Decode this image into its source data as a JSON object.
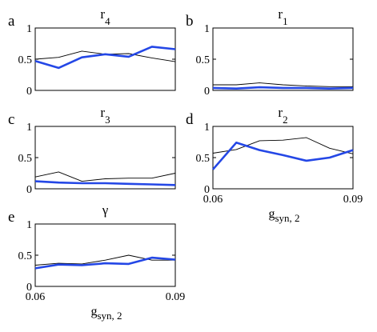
{
  "colors": {
    "thin": "#000000",
    "thick": "#2447e6"
  },
  "chart_data": [
    {
      "panel": "a",
      "type": "line",
      "title": "r",
      "title_sub": "4",
      "ylim": [
        0,
        1
      ],
      "yticks": [
        "0",
        "0.5",
        "1"
      ],
      "xlim": [
        0.06,
        0.09
      ],
      "xticks": [],
      "xlabel": "",
      "xlabel_sub": "",
      "x": [
        0.06,
        0.065,
        0.07,
        0.075,
        0.08,
        0.085,
        0.09
      ],
      "series": [
        {
          "style": "thin",
          "values": [
            0.5,
            0.53,
            0.63,
            0.58,
            0.59,
            0.52,
            0.46
          ]
        },
        {
          "style": "thick",
          "values": [
            0.47,
            0.36,
            0.53,
            0.58,
            0.54,
            0.7,
            0.66
          ]
        }
      ]
    },
    {
      "panel": "b",
      "type": "line",
      "title": "r",
      "title_sub": "1",
      "ylim": [
        0,
        1
      ],
      "yticks": [
        "0",
        "0.5",
        "1"
      ],
      "xlim": [
        0.06,
        0.09
      ],
      "xticks": [],
      "xlabel": "",
      "xlabel_sub": "",
      "x": [
        0.06,
        0.065,
        0.07,
        0.075,
        0.08,
        0.085,
        0.09
      ],
      "series": [
        {
          "style": "thin",
          "values": [
            0.09,
            0.09,
            0.12,
            0.09,
            0.07,
            0.06,
            0.06
          ]
        },
        {
          "style": "thick",
          "values": [
            0.04,
            0.03,
            0.05,
            0.04,
            0.04,
            0.03,
            0.04
          ]
        }
      ]
    },
    {
      "panel": "c",
      "type": "line",
      "title": "r",
      "title_sub": "3",
      "ylim": [
        0,
        1
      ],
      "yticks": [
        "0",
        "0.5",
        "1"
      ],
      "xlim": [
        0.06,
        0.09
      ],
      "xticks": [],
      "xlabel": "",
      "xlabel_sub": "",
      "x": [
        0.06,
        0.065,
        0.07,
        0.075,
        0.08,
        0.085,
        0.09
      ],
      "series": [
        {
          "style": "thin",
          "values": [
            0.19,
            0.27,
            0.12,
            0.16,
            0.17,
            0.17,
            0.25
          ]
        },
        {
          "style": "thick",
          "values": [
            0.12,
            0.1,
            0.09,
            0.09,
            0.08,
            0.07,
            0.06
          ]
        }
      ]
    },
    {
      "panel": "d",
      "type": "line",
      "title": "r",
      "title_sub": "2",
      "ylim": [
        0,
        1
      ],
      "yticks": [
        "0",
        "0.5",
        "1"
      ],
      "xlim": [
        0.06,
        0.09
      ],
      "xticks": [
        "0.06",
        "0.09"
      ],
      "xlabel": "g",
      "xlabel_sub": "syn, 2",
      "x": [
        0.06,
        0.065,
        0.07,
        0.075,
        0.08,
        0.085,
        0.09
      ],
      "series": [
        {
          "style": "thin",
          "values": [
            0.57,
            0.63,
            0.77,
            0.78,
            0.82,
            0.65,
            0.56
          ]
        },
        {
          "style": "thick",
          "values": [
            0.31,
            0.74,
            0.62,
            0.54,
            0.45,
            0.5,
            0.62
          ]
        }
      ]
    },
    {
      "panel": "e",
      "type": "line",
      "title": "γ",
      "title_sub": "",
      "ylim": [
        0,
        1
      ],
      "yticks": [
        "0",
        "0.5",
        "1"
      ],
      "xlim": [
        0.06,
        0.09
      ],
      "xticks": [
        "0.06",
        "0.09"
      ],
      "xlabel": "g",
      "xlabel_sub": "syn, 2",
      "x": [
        0.06,
        0.065,
        0.07,
        0.075,
        0.08,
        0.085,
        0.09
      ],
      "series": [
        {
          "style": "thin",
          "values": [
            0.34,
            0.37,
            0.36,
            0.42,
            0.5,
            0.42,
            0.42
          ]
        },
        {
          "style": "thick",
          "values": [
            0.29,
            0.35,
            0.34,
            0.37,
            0.36,
            0.46,
            0.43
          ]
        }
      ]
    }
  ]
}
